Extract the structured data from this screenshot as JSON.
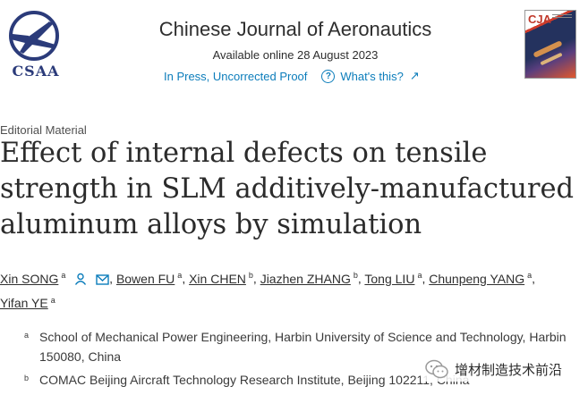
{
  "header": {
    "logo_text": "CSAA",
    "journal_title": "Chinese Journal of Aeronautics",
    "available_online": "Available online 28 August 2023",
    "in_press": "In Press, Uncorrected Proof",
    "whats_this": "What's this?",
    "cover_label": "CJA"
  },
  "article": {
    "type": "Editorial Material",
    "title": "Effect of internal defects on tensile strength in SLM additively-manufactured aluminum alloys by simulation"
  },
  "authors": [
    {
      "name": "Xin SONG",
      "sup": "a"
    },
    {
      "name": "Bowen FU",
      "sup": "a"
    },
    {
      "name": "Xin CHEN",
      "sup": "b"
    },
    {
      "name": "Jiazhen ZHANG",
      "sup": "b"
    },
    {
      "name": "Tong LIU",
      "sup": "a"
    },
    {
      "name": "Chunpeng YANG",
      "sup": "a"
    },
    {
      "name": "Yifan YE",
      "sup": "a"
    }
  ],
  "affiliations": [
    {
      "label": "a",
      "text": "School of Mechanical Power Engineering, Harbin University of Science and Technology, Harbin 150080, China"
    },
    {
      "label": "b",
      "text": "COMAC Beijing Aircraft Technology Research Institute, Beijing 102211, China"
    }
  ],
  "watermark": {
    "text": "增材制造技术前沿"
  },
  "colors": {
    "link": "#0c7dbb",
    "logo": "#2b3b7a",
    "cover_accent": "#c0392b"
  }
}
